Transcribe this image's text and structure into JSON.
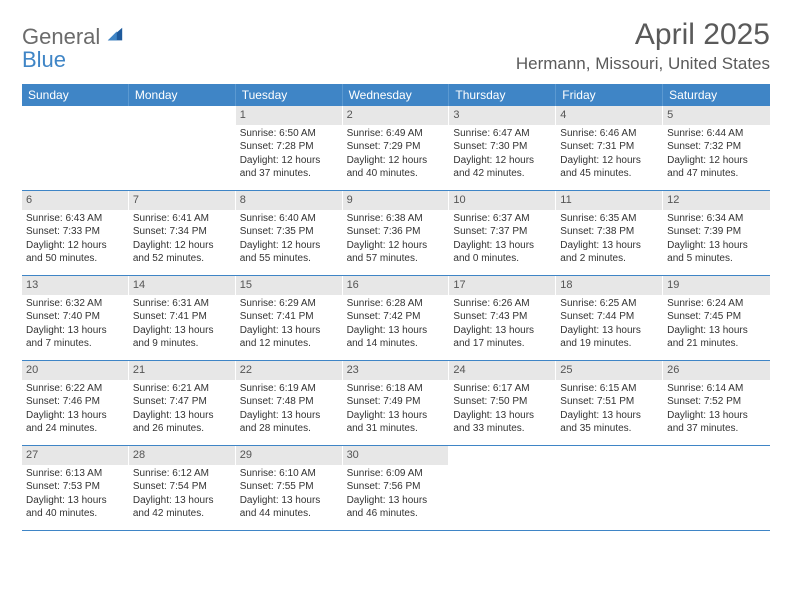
{
  "logo": {
    "word1": "General",
    "word2": "Blue"
  },
  "title": "April 2025",
  "location": "Hermann, Missouri, United States",
  "colors": {
    "header_bg": "#3f85c6",
    "header_text": "#ffffff",
    "daynum_bg": "#e7e7e7",
    "text": "#333333",
    "logo_gray": "#6b6b6b",
    "logo_blue": "#3f85c6"
  },
  "weekdays": [
    "Sunday",
    "Monday",
    "Tuesday",
    "Wednesday",
    "Thursday",
    "Friday",
    "Saturday"
  ],
  "weeks": [
    [
      {
        "blank": true
      },
      {
        "blank": true
      },
      {
        "num": "1",
        "sunrise": "Sunrise: 6:50 AM",
        "sunset": "Sunset: 7:28 PM",
        "day1": "Daylight: 12 hours",
        "day2": "and 37 minutes."
      },
      {
        "num": "2",
        "sunrise": "Sunrise: 6:49 AM",
        "sunset": "Sunset: 7:29 PM",
        "day1": "Daylight: 12 hours",
        "day2": "and 40 minutes."
      },
      {
        "num": "3",
        "sunrise": "Sunrise: 6:47 AM",
        "sunset": "Sunset: 7:30 PM",
        "day1": "Daylight: 12 hours",
        "day2": "and 42 minutes."
      },
      {
        "num": "4",
        "sunrise": "Sunrise: 6:46 AM",
        "sunset": "Sunset: 7:31 PM",
        "day1": "Daylight: 12 hours",
        "day2": "and 45 minutes."
      },
      {
        "num": "5",
        "sunrise": "Sunrise: 6:44 AM",
        "sunset": "Sunset: 7:32 PM",
        "day1": "Daylight: 12 hours",
        "day2": "and 47 minutes."
      }
    ],
    [
      {
        "num": "6",
        "sunrise": "Sunrise: 6:43 AM",
        "sunset": "Sunset: 7:33 PM",
        "day1": "Daylight: 12 hours",
        "day2": "and 50 minutes."
      },
      {
        "num": "7",
        "sunrise": "Sunrise: 6:41 AM",
        "sunset": "Sunset: 7:34 PM",
        "day1": "Daylight: 12 hours",
        "day2": "and 52 minutes."
      },
      {
        "num": "8",
        "sunrise": "Sunrise: 6:40 AM",
        "sunset": "Sunset: 7:35 PM",
        "day1": "Daylight: 12 hours",
        "day2": "and 55 minutes."
      },
      {
        "num": "9",
        "sunrise": "Sunrise: 6:38 AM",
        "sunset": "Sunset: 7:36 PM",
        "day1": "Daylight: 12 hours",
        "day2": "and 57 minutes."
      },
      {
        "num": "10",
        "sunrise": "Sunrise: 6:37 AM",
        "sunset": "Sunset: 7:37 PM",
        "day1": "Daylight: 13 hours",
        "day2": "and 0 minutes."
      },
      {
        "num": "11",
        "sunrise": "Sunrise: 6:35 AM",
        "sunset": "Sunset: 7:38 PM",
        "day1": "Daylight: 13 hours",
        "day2": "and 2 minutes."
      },
      {
        "num": "12",
        "sunrise": "Sunrise: 6:34 AM",
        "sunset": "Sunset: 7:39 PM",
        "day1": "Daylight: 13 hours",
        "day2": "and 5 minutes."
      }
    ],
    [
      {
        "num": "13",
        "sunrise": "Sunrise: 6:32 AM",
        "sunset": "Sunset: 7:40 PM",
        "day1": "Daylight: 13 hours",
        "day2": "and 7 minutes."
      },
      {
        "num": "14",
        "sunrise": "Sunrise: 6:31 AM",
        "sunset": "Sunset: 7:41 PM",
        "day1": "Daylight: 13 hours",
        "day2": "and 9 minutes."
      },
      {
        "num": "15",
        "sunrise": "Sunrise: 6:29 AM",
        "sunset": "Sunset: 7:41 PM",
        "day1": "Daylight: 13 hours",
        "day2": "and 12 minutes."
      },
      {
        "num": "16",
        "sunrise": "Sunrise: 6:28 AM",
        "sunset": "Sunset: 7:42 PM",
        "day1": "Daylight: 13 hours",
        "day2": "and 14 minutes."
      },
      {
        "num": "17",
        "sunrise": "Sunrise: 6:26 AM",
        "sunset": "Sunset: 7:43 PM",
        "day1": "Daylight: 13 hours",
        "day2": "and 17 minutes."
      },
      {
        "num": "18",
        "sunrise": "Sunrise: 6:25 AM",
        "sunset": "Sunset: 7:44 PM",
        "day1": "Daylight: 13 hours",
        "day2": "and 19 minutes."
      },
      {
        "num": "19",
        "sunrise": "Sunrise: 6:24 AM",
        "sunset": "Sunset: 7:45 PM",
        "day1": "Daylight: 13 hours",
        "day2": "and 21 minutes."
      }
    ],
    [
      {
        "num": "20",
        "sunrise": "Sunrise: 6:22 AM",
        "sunset": "Sunset: 7:46 PM",
        "day1": "Daylight: 13 hours",
        "day2": "and 24 minutes."
      },
      {
        "num": "21",
        "sunrise": "Sunrise: 6:21 AM",
        "sunset": "Sunset: 7:47 PM",
        "day1": "Daylight: 13 hours",
        "day2": "and 26 minutes."
      },
      {
        "num": "22",
        "sunrise": "Sunrise: 6:19 AM",
        "sunset": "Sunset: 7:48 PM",
        "day1": "Daylight: 13 hours",
        "day2": "and 28 minutes."
      },
      {
        "num": "23",
        "sunrise": "Sunrise: 6:18 AM",
        "sunset": "Sunset: 7:49 PM",
        "day1": "Daylight: 13 hours",
        "day2": "and 31 minutes."
      },
      {
        "num": "24",
        "sunrise": "Sunrise: 6:17 AM",
        "sunset": "Sunset: 7:50 PM",
        "day1": "Daylight: 13 hours",
        "day2": "and 33 minutes."
      },
      {
        "num": "25",
        "sunrise": "Sunrise: 6:15 AM",
        "sunset": "Sunset: 7:51 PM",
        "day1": "Daylight: 13 hours",
        "day2": "and 35 minutes."
      },
      {
        "num": "26",
        "sunrise": "Sunrise: 6:14 AM",
        "sunset": "Sunset: 7:52 PM",
        "day1": "Daylight: 13 hours",
        "day2": "and 37 minutes."
      }
    ],
    [
      {
        "num": "27",
        "sunrise": "Sunrise: 6:13 AM",
        "sunset": "Sunset: 7:53 PM",
        "day1": "Daylight: 13 hours",
        "day2": "and 40 minutes."
      },
      {
        "num": "28",
        "sunrise": "Sunrise: 6:12 AM",
        "sunset": "Sunset: 7:54 PM",
        "day1": "Daylight: 13 hours",
        "day2": "and 42 minutes."
      },
      {
        "num": "29",
        "sunrise": "Sunrise: 6:10 AM",
        "sunset": "Sunset: 7:55 PM",
        "day1": "Daylight: 13 hours",
        "day2": "and 44 minutes."
      },
      {
        "num": "30",
        "sunrise": "Sunrise: 6:09 AM",
        "sunset": "Sunset: 7:56 PM",
        "day1": "Daylight: 13 hours",
        "day2": "and 46 minutes."
      },
      {
        "blank": true
      },
      {
        "blank": true
      },
      {
        "blank": true
      }
    ]
  ]
}
